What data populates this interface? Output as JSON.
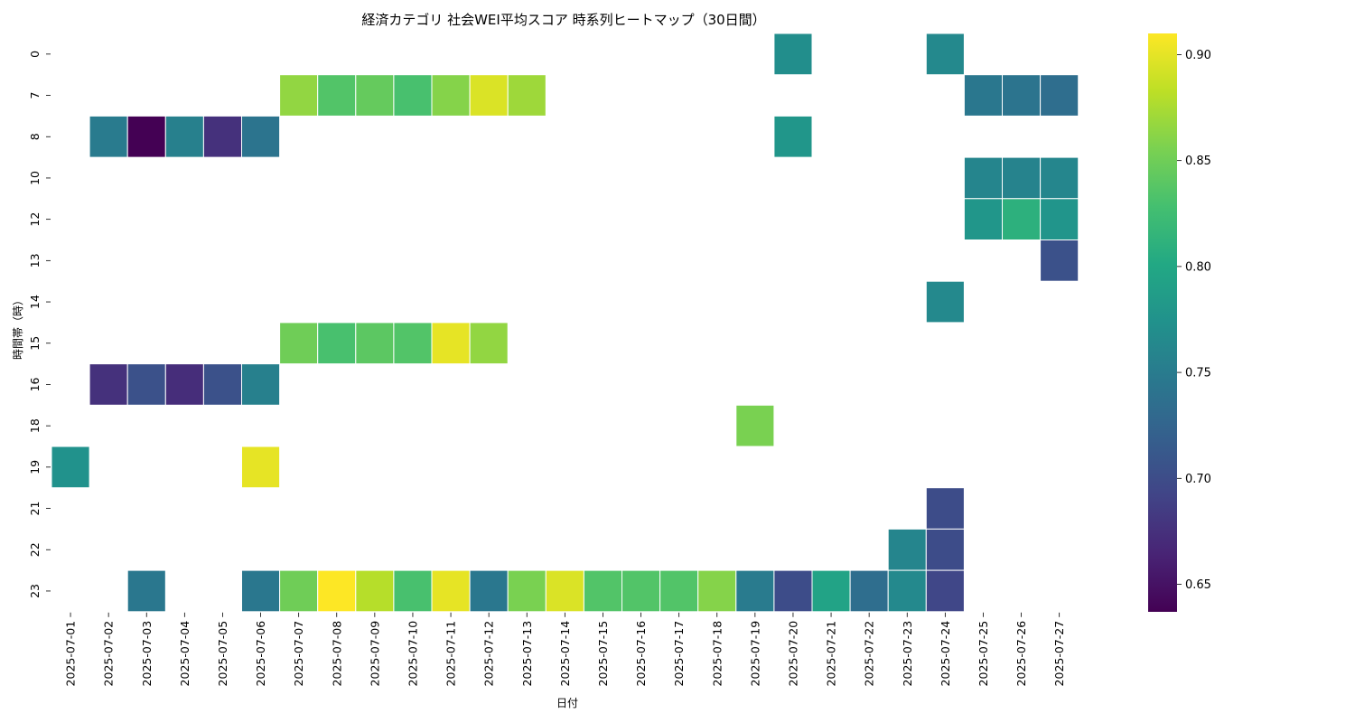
{
  "chart_data": {
    "type": "heatmap",
    "title": "経済カテゴリ 社会WEI平均スコア 時系列ヒートマップ（30日間）",
    "xlabel": "日付",
    "ylabel": "時間帯（時）",
    "x_categories": [
      "2025-07-01",
      "2025-07-02",
      "2025-07-03",
      "2025-07-04",
      "2025-07-05",
      "2025-07-06",
      "2025-07-07",
      "2025-07-08",
      "2025-07-09",
      "2025-07-10",
      "2025-07-11",
      "2025-07-12",
      "2025-07-13",
      "2025-07-14",
      "2025-07-15",
      "2025-07-16",
      "2025-07-17",
      "2025-07-18",
      "2025-07-19",
      "2025-07-20",
      "2025-07-21",
      "2025-07-22",
      "2025-07-23",
      "2025-07-24",
      "2025-07-25",
      "2025-07-26",
      "2025-07-27"
    ],
    "y_categories": [
      "0",
      "7",
      "8",
      "10",
      "12",
      "13",
      "14",
      "15",
      "16",
      "18",
      "19",
      "21",
      "22",
      "23"
    ],
    "colormap": "viridis",
    "vmin": 0.637,
    "vmax": 0.91,
    "colorbar_ticks": [
      0.65,
      0.7,
      0.75,
      0.8,
      0.85,
      0.9
    ],
    "colorbar_tick_labels": [
      "0.65",
      "0.70",
      "0.75",
      "0.80",
      "0.85",
      "0.90"
    ],
    "grid": false,
    "cells": [
      {
        "y": "0",
        "x": "2025-07-20",
        "value": 0.77
      },
      {
        "y": "0",
        "x": "2025-07-24",
        "value": 0.765
      },
      {
        "y": "7",
        "x": "2025-07-07",
        "value": 0.865
      },
      {
        "y": "7",
        "x": "2025-07-08",
        "value": 0.835
      },
      {
        "y": "7",
        "x": "2025-07-09",
        "value": 0.845
      },
      {
        "y": "7",
        "x": "2025-07-10",
        "value": 0.83
      },
      {
        "y": "7",
        "x": "2025-07-11",
        "value": 0.86
      },
      {
        "y": "7",
        "x": "2025-07-12",
        "value": 0.895
      },
      {
        "y": "7",
        "x": "2025-07-13",
        "value": 0.87
      },
      {
        "y": "7",
        "x": "2025-07-25",
        "value": 0.745
      },
      {
        "y": "7",
        "x": "2025-07-26",
        "value": 0.742
      },
      {
        "y": "7",
        "x": "2025-07-27",
        "value": 0.735
      },
      {
        "y": "8",
        "x": "2025-07-02",
        "value": 0.75
      },
      {
        "y": "8",
        "x": "2025-07-03",
        "value": 0.637
      },
      {
        "y": "8",
        "x": "2025-07-04",
        "value": 0.755
      },
      {
        "y": "8",
        "x": "2025-07-05",
        "value": 0.675
      },
      {
        "y": "8",
        "x": "2025-07-06",
        "value": 0.742
      },
      {
        "y": "8",
        "x": "2025-07-20",
        "value": 0.78
      },
      {
        "y": "10",
        "x": "2025-07-25",
        "value": 0.76
      },
      {
        "y": "10",
        "x": "2025-07-26",
        "value": 0.758
      },
      {
        "y": "10",
        "x": "2025-07-27",
        "value": 0.762
      },
      {
        "y": "12",
        "x": "2025-07-25",
        "value": 0.78
      },
      {
        "y": "12",
        "x": "2025-07-26",
        "value": 0.81
      },
      {
        "y": "12",
        "x": "2025-07-27",
        "value": 0.778
      },
      {
        "y": "13",
        "x": "2025-07-27",
        "value": 0.705
      },
      {
        "y": "14",
        "x": "2025-07-24",
        "value": 0.765
      },
      {
        "y": "15",
        "x": "2025-07-07",
        "value": 0.85
      },
      {
        "y": "15",
        "x": "2025-07-08",
        "value": 0.83
      },
      {
        "y": "15",
        "x": "2025-07-09",
        "value": 0.84
      },
      {
        "y": "15",
        "x": "2025-07-10",
        "value": 0.835
      },
      {
        "y": "15",
        "x": "2025-07-11",
        "value": 0.9
      },
      {
        "y": "15",
        "x": "2025-07-12",
        "value": 0.865
      },
      {
        "y": "16",
        "x": "2025-07-02",
        "value": 0.675
      },
      {
        "y": "16",
        "x": "2025-07-03",
        "value": 0.705
      },
      {
        "y": "16",
        "x": "2025-07-04",
        "value": 0.672
      },
      {
        "y": "16",
        "x": "2025-07-05",
        "value": 0.705
      },
      {
        "y": "16",
        "x": "2025-07-06",
        "value": 0.755
      },
      {
        "y": "18",
        "x": "2025-07-19",
        "value": 0.855
      },
      {
        "y": "19",
        "x": "2025-07-01",
        "value": 0.775
      },
      {
        "y": "19",
        "x": "2025-07-06",
        "value": 0.9
      },
      {
        "y": "21",
        "x": "2025-07-24",
        "value": 0.7
      },
      {
        "y": "22",
        "x": "2025-07-23",
        "value": 0.76
      },
      {
        "y": "22",
        "x": "2025-07-24",
        "value": 0.7
      },
      {
        "y": "23",
        "x": "2025-07-03",
        "value": 0.745
      },
      {
        "y": "23",
        "x": "2025-07-06",
        "value": 0.745
      },
      {
        "y": "23",
        "x": "2025-07-07",
        "value": 0.85
      },
      {
        "y": "23",
        "x": "2025-07-08",
        "value": 0.91
      },
      {
        "y": "23",
        "x": "2025-07-09",
        "value": 0.88
      },
      {
        "y": "23",
        "x": "2025-07-10",
        "value": 0.83
      },
      {
        "y": "23",
        "x": "2025-07-11",
        "value": 0.9
      },
      {
        "y": "23",
        "x": "2025-07-12",
        "value": 0.745
      },
      {
        "y": "23",
        "x": "2025-07-13",
        "value": 0.855
      },
      {
        "y": "23",
        "x": "2025-07-14",
        "value": 0.895
      },
      {
        "y": "23",
        "x": "2025-07-15",
        "value": 0.835
      },
      {
        "y": "23",
        "x": "2025-07-16",
        "value": 0.835
      },
      {
        "y": "23",
        "x": "2025-07-17",
        "value": 0.835
      },
      {
        "y": "23",
        "x": "2025-07-18",
        "value": 0.86
      },
      {
        "y": "23",
        "x": "2025-07-19",
        "value": 0.75
      },
      {
        "y": "23",
        "x": "2025-07-20",
        "value": 0.7
      },
      {
        "y": "23",
        "x": "2025-07-21",
        "value": 0.795
      },
      {
        "y": "23",
        "x": "2025-07-22",
        "value": 0.735
      },
      {
        "y": "23",
        "x": "2025-07-23",
        "value": 0.765
      },
      {
        "y": "23",
        "x": "2025-07-24",
        "value": 0.695
      }
    ]
  }
}
